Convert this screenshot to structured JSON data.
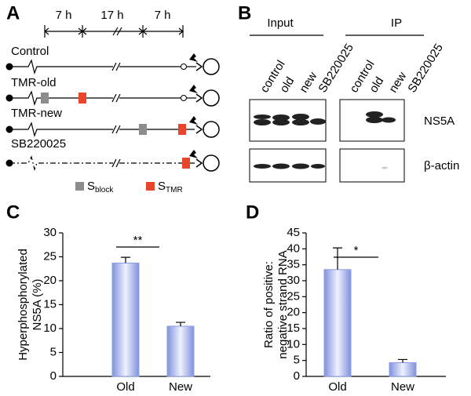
{
  "panel_labels": [
    "A",
    "B",
    "C",
    "D"
  ],
  "schematic": {
    "intervals": [
      "7 h",
      "17 h",
      "7 h"
    ],
    "rows": [
      "Control",
      "TMR-old",
      "TMR-new",
      "SB220025"
    ],
    "legend": [
      {
        "symbol": "S",
        "sub": "block"
      },
      {
        "symbol": "S",
        "sub": "TMR"
      }
    ]
  },
  "blot": {
    "groups": [
      "Input",
      "IP"
    ],
    "input_lanes": [
      "control",
      "old",
      "new",
      "SB220025"
    ],
    "ip_lanes": [
      "control",
      "old",
      "new",
      "SB220025"
    ],
    "rows": [
      "NS5A",
      "β-actin"
    ]
  },
  "chart_data": [
    {
      "type": "bar",
      "ylabel": [
        "Hyperphosphorylated",
        "NS5A (%)"
      ],
      "categories": [
        "Old",
        "New"
      ],
      "values": [
        23.7,
        10.5
      ],
      "errors": [
        1.2,
        0.8
      ],
      "color": "#8c9ee6",
      "ylim": [
        0,
        30
      ],
      "yticks": [
        0,
        5,
        10,
        15,
        20,
        25,
        30
      ],
      "significance": "**"
    },
    {
      "type": "bar",
      "ylabel": [
        "Ratio of positive:",
        "negative strand RNA"
      ],
      "categories": [
        "Old",
        "New"
      ],
      "values": [
        33.5,
        4.3
      ],
      "errors": [
        6.8,
        1.0
      ],
      "color": "#8c9ee6",
      "ylim": [
        0,
        45
      ],
      "yticks": [
        0,
        5,
        10,
        15,
        20,
        25,
        30,
        35,
        40,
        45
      ],
      "significance": "*"
    }
  ]
}
